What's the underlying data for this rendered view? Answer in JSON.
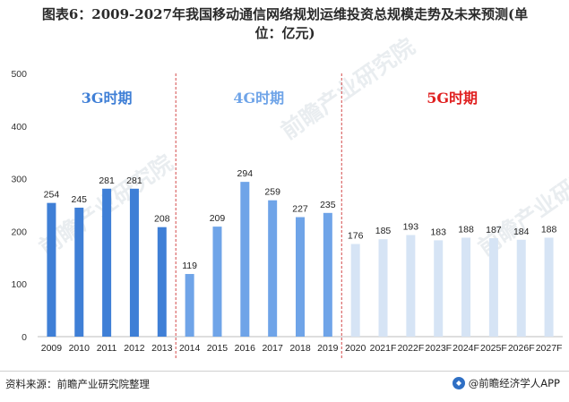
{
  "title_line1": "图表6：2009-2027年我国移动通信网络规划运维投资总规模走势及未来预测(单",
  "title_line2": "位：亿元)",
  "footer": {
    "source": "资料来源：前瞻产业研究院整理",
    "brand": "@前瞻经济学人APP",
    "watermark": "前瞻产业研究院"
  },
  "colors": {
    "3g": "#3f7fd6",
    "4g": "#6fa4e8",
    "5g": "#d6e4f5",
    "label_3g": "#3f7fd6",
    "label_4g": "#6fa4e8",
    "label_5g": "#e02020",
    "divider": "#d44a4a"
  },
  "chart_data": {
    "type": "bar",
    "ylim": [
      0,
      500
    ],
    "yticks": [
      0,
      100,
      200,
      300,
      400,
      500
    ],
    "categories": [
      "2009",
      "2010",
      "2011",
      "2012",
      "2013",
      "2014",
      "2015",
      "2016",
      "2017",
      "2018",
      "2019",
      "2020",
      "2021F",
      "2022F",
      "2023F",
      "2024F",
      "2025F",
      "2026F",
      "2027F"
    ],
    "values": [
      254,
      245,
      281,
      281,
      208,
      119,
      209,
      294,
      259,
      227,
      235,
      176,
      185,
      193,
      183,
      188,
      187,
      184,
      188
    ],
    "periods": [
      {
        "label": "3G时期",
        "start": 0,
        "end": 4,
        "color_key": "3g"
      },
      {
        "label": "4G时期",
        "start": 5,
        "end": 10,
        "color_key": "4g"
      },
      {
        "label": "5G时期",
        "start": 11,
        "end": 18,
        "color_key": "5g"
      }
    ]
  }
}
